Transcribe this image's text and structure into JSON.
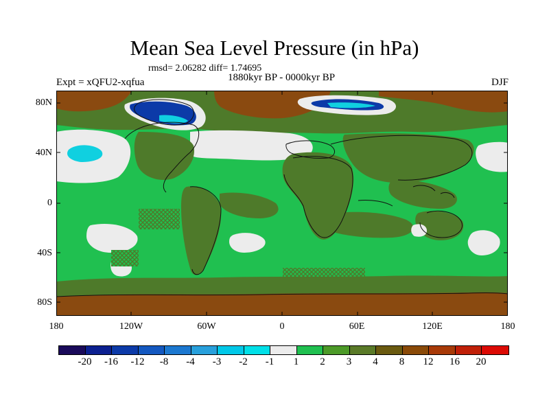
{
  "title": "Mean Sea Level Pressure (in hPa)",
  "stats": "rmsd= 2.06282 diff= 1.74695",
  "subtitle": "1880kyr BP - 0000kyr BP",
  "expt": "Expt = xQFU2-xqfua",
  "season": "DJF",
  "lat_labels": [
    "80N",
    "40N",
    "0",
    "40S",
    "80S"
  ],
  "lon_labels": [
    "180",
    "120W",
    "60W",
    "0",
    "60E",
    "120E",
    "180"
  ],
  "colorbar": {
    "colors": [
      "#1a0a5a",
      "#0c2090",
      "#0c3aa8",
      "#1458c0",
      "#1c78d0",
      "#28a0dc",
      "#00c8e8",
      "#00e0e8",
      "#ececec",
      "#20c050",
      "#4c9a28",
      "#5a7a28",
      "#6a5a10",
      "#8a4a08",
      "#a83a08",
      "#c02008",
      "#dc0a04"
    ],
    "labels": [
      "-20",
      "-16",
      "-12",
      "-8",
      "-4",
      "-3",
      "-2",
      "-1",
      "1",
      "2",
      "3",
      "4",
      "8",
      "12",
      "16",
      "20"
    ]
  },
  "map_colors": {
    "ocean_green": "#20c050",
    "land_olive": "#4e7a2a",
    "pale": "#ececec",
    "cyan": "#10d0e0",
    "brown": "#8a4a10",
    "dark_blue": "#0c3aa8",
    "coast": "#101010"
  }
}
